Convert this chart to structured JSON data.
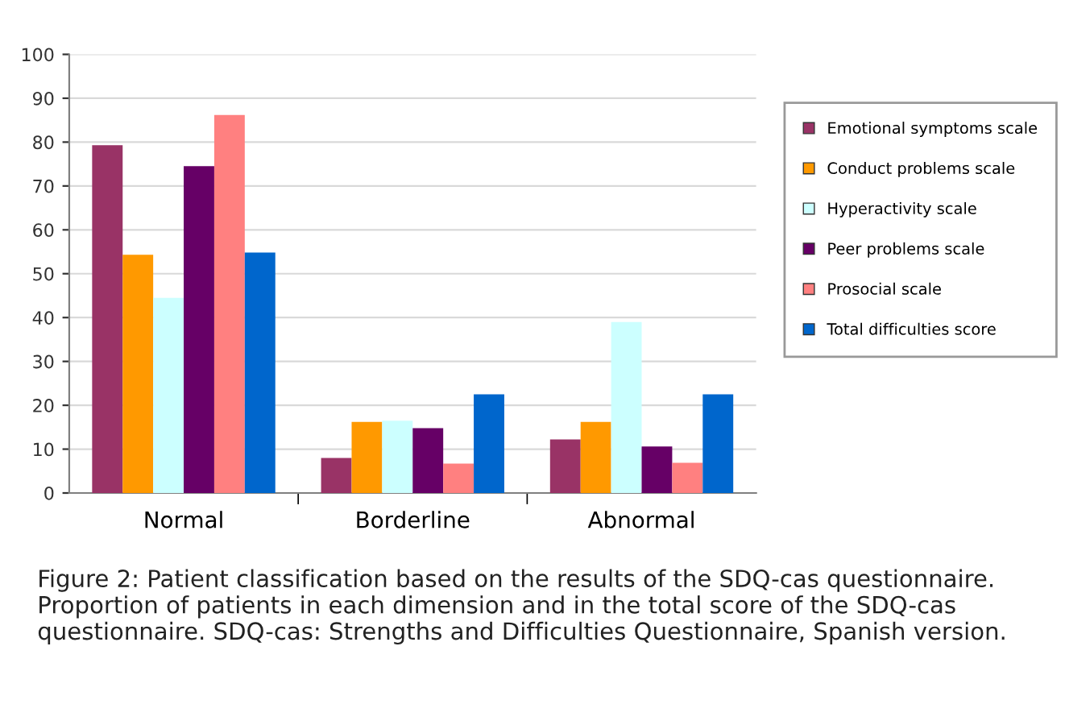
{
  "chart_data": {
    "type": "bar",
    "categories": [
      "Normal",
      "Borderline",
      "Abnormal"
    ],
    "series": [
      {
        "name": "Emotional symptoms scale",
        "color": "#993366",
        "values": [
          79.3,
          8,
          12.2
        ]
      },
      {
        "name": "Conduct problems scale",
        "color": "#ff9900",
        "values": [
          54.3,
          16.2,
          16.2
        ]
      },
      {
        "name": "Hyperactivity scale",
        "color": "#ccffff",
        "values": [
          44.5,
          16.5,
          39
        ]
      },
      {
        "name": "Peer problems scale",
        "color": "#660066",
        "values": [
          74.5,
          14.8,
          10.6
        ]
      },
      {
        "name": "Prosocial scale",
        "color": "#ff8080",
        "values": [
          86.2,
          6.7,
          6.9
        ]
      },
      {
        "name": "Total difficulties score",
        "color": "#0066cc",
        "values": [
          54.8,
          22.5,
          22.5
        ]
      }
    ],
    "ylim": [
      0,
      100
    ],
    "yticks": [
      0,
      10,
      20,
      30,
      40,
      50,
      60,
      70,
      80,
      90,
      100
    ],
    "grid": "y",
    "legend": "right",
    "annotations": [
      "Figure 2: Patient classification based on the results of the SDQ-cas questionnaire. Proportion of patients in each dimension and in the total score of the SDQ-cas questionnaire. SDQ-cas: Strengths and Difficulties Questionnaire, Spanish version."
    ]
  }
}
